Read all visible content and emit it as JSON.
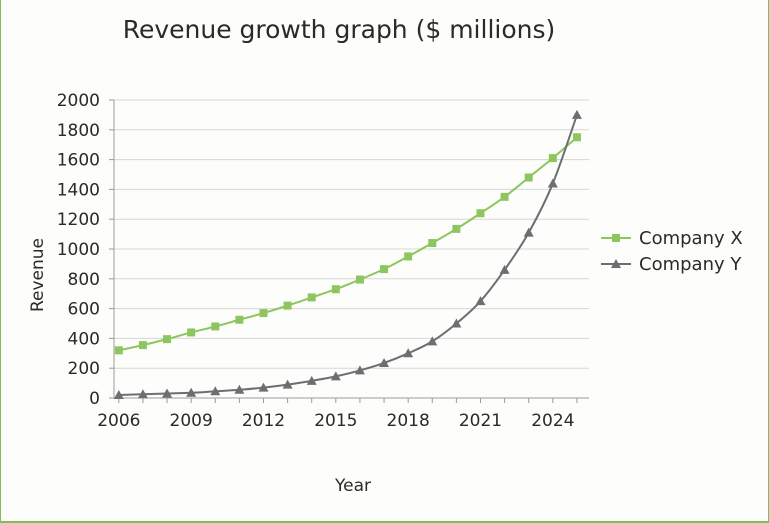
{
  "chart_data": {
    "type": "line",
    "title": "Revenue growth graph ($ millions)",
    "xlabel": "Year",
    "ylabel": "Revenue",
    "ylim": [
      0,
      2000
    ],
    "y_ticks": [
      0,
      200,
      400,
      600,
      800,
      1000,
      1200,
      1400,
      1600,
      1800,
      2000
    ],
    "y_tick_labels": [
      "0",
      "200",
      "400",
      "600",
      "800",
      "1000",
      "1200",
      "1400",
      "1600",
      "1800",
      "2000"
    ],
    "x": [
      2006,
      2007,
      2008,
      2009,
      2010,
      2011,
      2012,
      2013,
      2014,
      2015,
      2016,
      2017,
      2018,
      2019,
      2020,
      2021,
      2022,
      2023,
      2024,
      2025
    ],
    "x_ticks": [
      2006,
      2009,
      2012,
      2015,
      2018,
      2021,
      2024
    ],
    "x_tick_labels": [
      "2006",
      "2009",
      "2012",
      "2015",
      "2018",
      "2021",
      "2024"
    ],
    "grid": true,
    "legend_position": "right",
    "series": [
      {
        "name": "Company X",
        "color": "#8dc65e",
        "marker": "square",
        "values": [
          320,
          355,
          395,
          440,
          480,
          525,
          570,
          620,
          675,
          730,
          795,
          865,
          950,
          1040,
          1135,
          1240,
          1350,
          1480,
          1610,
          1750
        ]
      },
      {
        "name": "Company Y",
        "color": "#6d6e71",
        "marker": "triangle",
        "values": [
          20,
          25,
          30,
          35,
          45,
          55,
          70,
          90,
          115,
          145,
          185,
          235,
          300,
          380,
          500,
          650,
          860,
          1110,
          1440,
          1900
        ]
      }
    ]
  }
}
